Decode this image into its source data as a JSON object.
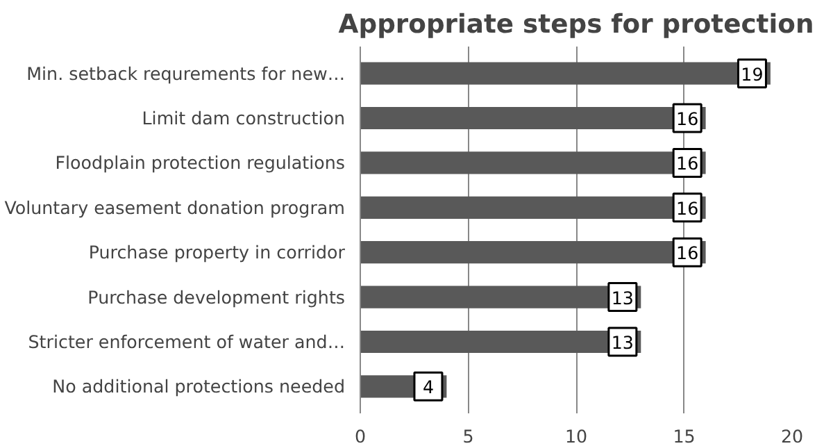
{
  "chart_data": {
    "type": "bar",
    "orientation": "horizontal",
    "title": "Appropriate steps for protection",
    "categories": [
      "Min. setback requrements for new…",
      "Limit dam construction",
      "Floodplain protection regulations",
      "Voluntary easement donation program",
      "Purchase property in corridor",
      "Purchase development rights",
      "Stricter enforcement of water and…",
      "No additional protections needed"
    ],
    "values": [
      19,
      16,
      16,
      16,
      16,
      13,
      13,
      4
    ],
    "color": "#595959",
    "xlim": [
      0,
      20
    ],
    "xticks": [
      0,
      5,
      10,
      15,
      20
    ],
    "grid": "x",
    "data_labels": true
  }
}
